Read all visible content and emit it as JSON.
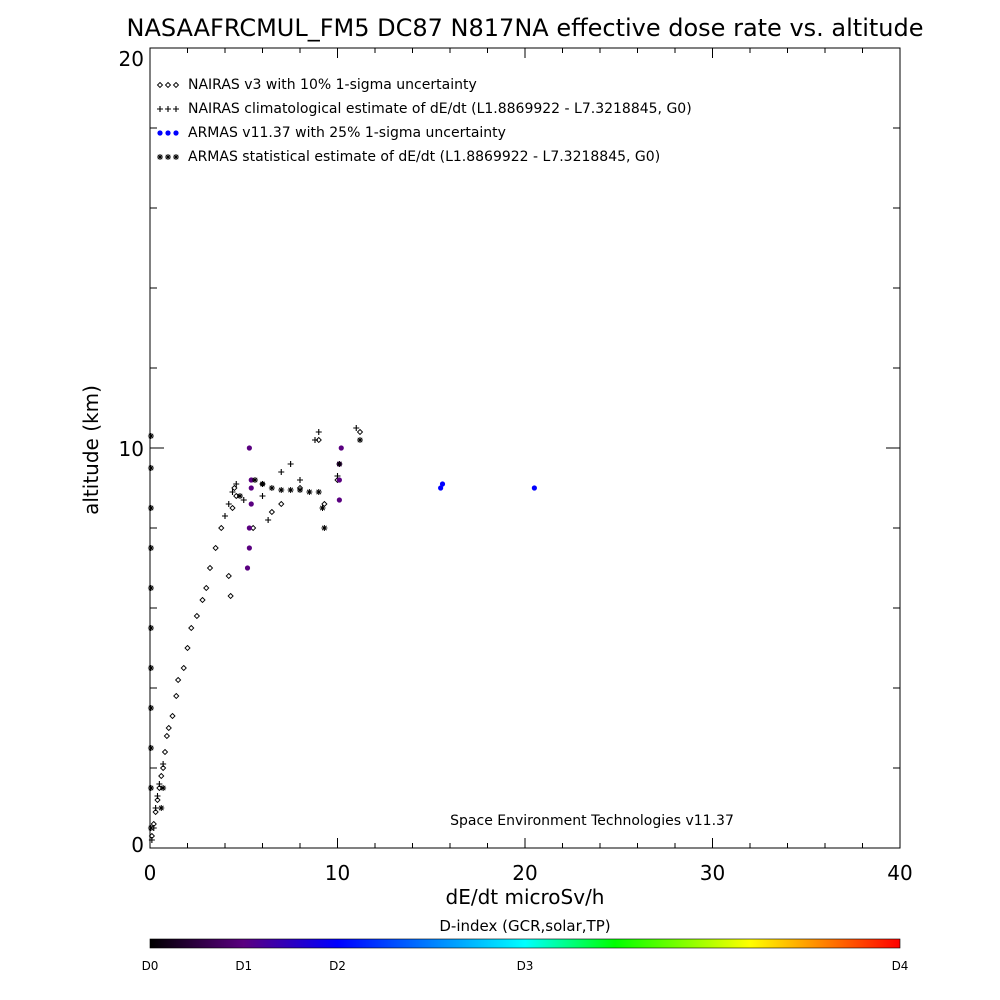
{
  "chart_data": {
    "type": "scatter",
    "title": "NASAAFRCMUL_FM5 DC87 N817NA effective dose rate vs. altitude",
    "xlabel": "dE/dt microSv/h",
    "ylabel": "altitude (km)",
    "xlim": [
      0,
      40
    ],
    "ylim": [
      0,
      20
    ],
    "x_ticks": [
      0,
      10,
      20,
      30,
      40
    ],
    "y_ticks": [
      0,
      10,
      20
    ],
    "legend_position": "top-left",
    "credit": "Space Environment Technologies v11.37",
    "colorbar": {
      "title": "D-index (GCR,solar,TP)",
      "labels": [
        {
          "text": "D0",
          "value": 0
        },
        {
          "text": "D1",
          "value": 5
        },
        {
          "text": "D2",
          "value": 10
        },
        {
          "text": "D3",
          "value": 20
        },
        {
          "text": "D4",
          "value": 40
        }
      ],
      "colors": [
        "#000000",
        "#5a0080",
        "#0000ff",
        "#00ffff",
        "#00ff00",
        "#ffff00",
        "#ff0000"
      ]
    },
    "series": [
      {
        "name": "NAIRAS v3 with 10% 1-sigma uncertainty",
        "marker": "diamond",
        "color": "#000000",
        "points": [
          [
            0.1,
            0.3
          ],
          [
            0.2,
            0.6
          ],
          [
            0.3,
            0.9
          ],
          [
            0.4,
            1.2
          ],
          [
            0.5,
            1.5
          ],
          [
            0.6,
            1.8
          ],
          [
            0.7,
            2.0
          ],
          [
            0.8,
            2.4
          ],
          [
            0.9,
            2.8
          ],
          [
            1.0,
            3.0
          ],
          [
            1.2,
            3.3
          ],
          [
            1.4,
            3.8
          ],
          [
            1.5,
            4.2
          ],
          [
            1.8,
            4.5
          ],
          [
            2.0,
            5.0
          ],
          [
            2.2,
            5.5
          ],
          [
            2.5,
            5.8
          ],
          [
            2.8,
            6.2
          ],
          [
            3.0,
            6.5
          ],
          [
            3.2,
            7.0
          ],
          [
            3.5,
            7.5
          ],
          [
            3.8,
            8.0
          ],
          [
            4.2,
            6.8
          ],
          [
            4.3,
            6.3
          ],
          [
            4.4,
            8.5
          ],
          [
            4.5,
            9.0
          ],
          [
            4.6,
            8.8
          ],
          [
            5.5,
            8.0
          ],
          [
            6.0,
            9.1
          ],
          [
            6.5,
            8.4
          ],
          [
            7.0,
            8.6
          ],
          [
            8.0,
            9.0
          ],
          [
            9.0,
            10.2
          ],
          [
            9.3,
            8.6
          ],
          [
            10.0,
            9.2
          ],
          [
            11.2,
            10.4
          ]
        ]
      },
      {
        "name": "NAIRAS climatological estimate of dE/dt (L1.8869922 - L7.3218845, G0)",
        "marker": "plus",
        "color": "#000000",
        "points": [
          [
            0.1,
            0.2
          ],
          [
            0.2,
            0.5
          ],
          [
            0.3,
            1.0
          ],
          [
            0.4,
            1.3
          ],
          [
            0.5,
            1.6
          ],
          [
            0.7,
            2.1
          ],
          [
            4.0,
            8.3
          ],
          [
            4.2,
            8.6
          ],
          [
            4.4,
            8.9
          ],
          [
            4.6,
            9.1
          ],
          [
            5.0,
            8.7
          ],
          [
            6.0,
            8.8
          ],
          [
            6.3,
            8.2
          ],
          [
            7.0,
            9.4
          ],
          [
            7.5,
            9.6
          ],
          [
            8.0,
            9.2
          ],
          [
            8.8,
            10.2
          ],
          [
            9.0,
            10.4
          ],
          [
            10.0,
            9.3
          ],
          [
            11.0,
            10.5
          ]
        ]
      },
      {
        "name": "ARMAS v11.37 with 25% 1-sigma uncertainty",
        "marker": "dot",
        "color": "#0000ff",
        "points": [
          [
            5.2,
            7.0
          ],
          [
            5.3,
            7.5
          ],
          [
            5.3,
            8.0
          ],
          [
            5.4,
            8.6
          ],
          [
            5.3,
            10.0
          ],
          [
            5.4,
            9.0
          ],
          [
            5.4,
            9.2
          ],
          [
            10.1,
            9.6
          ],
          [
            10.1,
            9.2
          ],
          [
            10.1,
            8.7
          ],
          [
            10.2,
            10.0
          ],
          [
            15.5,
            9.0
          ],
          [
            15.6,
            9.1
          ],
          [
            20.5,
            9.0
          ]
        ]
      },
      {
        "name": "ARMAS statistical estimate of dE/dt (L1.8869922 - L7.3218845, G0)",
        "marker": "asterisk",
        "color": "#000000",
        "points": [
          [
            0.05,
            0.5
          ],
          [
            0.05,
            1.5
          ],
          [
            0.05,
            2.5
          ],
          [
            0.05,
            3.5
          ],
          [
            0.05,
            4.5
          ],
          [
            0.05,
            5.5
          ],
          [
            0.05,
            6.5
          ],
          [
            0.05,
            7.5
          ],
          [
            0.05,
            8.5
          ],
          [
            0.05,
            9.5
          ],
          [
            0.05,
            10.3
          ],
          [
            0.6,
            1.0
          ],
          [
            0.7,
            1.5
          ],
          [
            4.8,
            8.8
          ],
          [
            5.6,
            9.2
          ],
          [
            6.0,
            9.1
          ],
          [
            6.5,
            9.0
          ],
          [
            7.0,
            8.95
          ],
          [
            7.5,
            8.95
          ],
          [
            8.0,
            8.95
          ],
          [
            8.5,
            8.9
          ],
          [
            9.0,
            8.9
          ],
          [
            9.3,
            8.0
          ],
          [
            9.2,
            8.5
          ],
          [
            10.1,
            9.6
          ],
          [
            11.2,
            10.2
          ]
        ]
      }
    ]
  }
}
